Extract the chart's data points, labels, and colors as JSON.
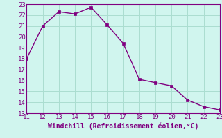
{
  "x": [
    11,
    12,
    13,
    14,
    15,
    16,
    17,
    18,
    19,
    20,
    21,
    22,
    23
  ],
  "y": [
    18,
    21,
    22.3,
    22.1,
    22.7,
    21.1,
    19.4,
    16.1,
    15.8,
    15.5,
    14.2,
    13.6,
    13.3
  ],
  "xlim": [
    11,
    23
  ],
  "ylim": [
    13,
    23
  ],
  "xticks": [
    11,
    12,
    13,
    14,
    15,
    16,
    17,
    18,
    19,
    20,
    21,
    22,
    23
  ],
  "yticks": [
    13,
    14,
    15,
    16,
    17,
    18,
    19,
    20,
    21,
    22,
    23
  ],
  "xlabel": "Windchill (Refroidissement éolien,°C)",
  "line_color": "#800080",
  "marker": "s",
  "marker_size": 2.5,
  "bg_color": "#d0f5ee",
  "grid_color": "#aaddd0",
  "tick_fontsize": 6.5,
  "xlabel_fontsize": 7
}
